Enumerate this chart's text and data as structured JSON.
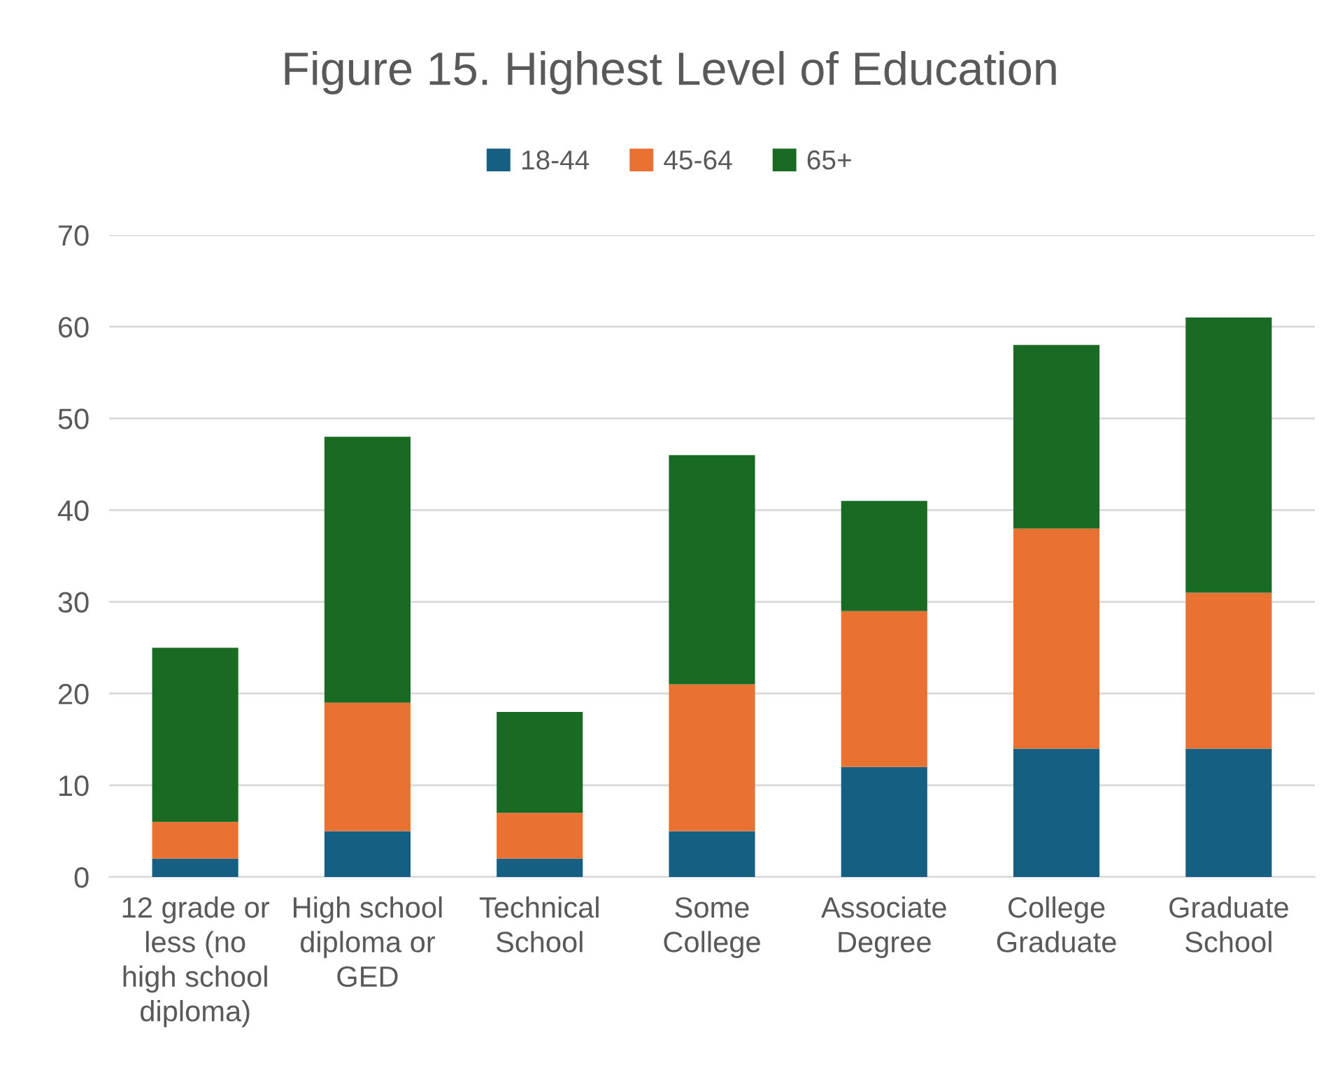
{
  "chart_data": {
    "type": "bar",
    "title": "Figure 15. Highest Level of Education",
    "stacked": true,
    "categories": [
      "12 grade or\nless (no\nhigh school\ndiploma)",
      "High school\ndiploma or\nGED",
      "Technical\nSchool",
      "Some\nCollege",
      "Associate\nDegree",
      "College\nGraduate",
      "Graduate\nSchool"
    ],
    "series": [
      {
        "name": "18-44",
        "color": "#156082",
        "values": [
          2,
          5,
          2,
          5,
          12,
          14,
          14
        ]
      },
      {
        "name": "45-64",
        "color": "#e97132",
        "values": [
          4,
          14,
          5,
          16,
          17,
          24,
          17
        ]
      },
      {
        "name": "65+",
        "color": "#196b24",
        "values": [
          19,
          29,
          11,
          25,
          12,
          20,
          30
        ]
      }
    ],
    "ylim": [
      0,
      70
    ],
    "yticks": [
      0,
      10,
      20,
      30,
      40,
      50,
      60,
      70
    ],
    "grid": "y",
    "legend": "top"
  }
}
